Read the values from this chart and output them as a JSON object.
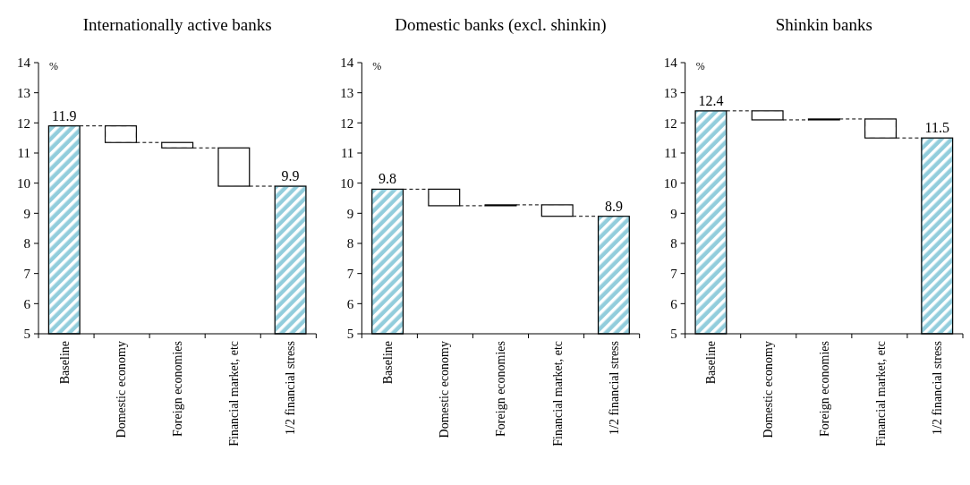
{
  "chart_data": [
    {
      "type": "bar",
      "title": "Internationally active banks",
      "ylabel": "%",
      "categories": [
        "Baseline",
        "Domestic economy",
        "Foreign economies",
        "Financial market, etc",
        "1/2 financial stress"
      ],
      "values": [
        11.9,
        -0.55,
        -0.18,
        -1.27,
        9.9
      ],
      "base": [
        null,
        11.9,
        11.35,
        11.17,
        null
      ],
      "colors": [
        "#92cddc",
        "#ffffff",
        "#ffffff",
        "#ffffff",
        "#92cddc"
      ],
      "value_labels": [
        "11.9",
        null,
        null,
        null,
        "9.9"
      ],
      "ylim": [
        5,
        14
      ],
      "yticks": [
        5,
        6,
        7,
        8,
        9,
        10,
        11,
        12,
        13,
        14
      ],
      "grid": false
    },
    {
      "type": "bar",
      "title": "Domestic banks (excl. shinkin)",
      "ylabel": "%",
      "categories": [
        "Baseline",
        "Domestic economy",
        "Foreign economies",
        "Financial market, etc",
        "1/2 financial stress"
      ],
      "values": [
        9.8,
        -0.55,
        0.03,
        -0.38,
        8.9
      ],
      "base": [
        null,
        9.8,
        9.25,
        9.28,
        null
      ],
      "colors": [
        "#92cddc",
        "#ffffff",
        "#ffffff",
        "#ffffff",
        "#92cddc"
      ],
      "value_labels": [
        "9.8",
        null,
        null,
        null,
        "8.9"
      ],
      "ylim": [
        5,
        14
      ],
      "yticks": [
        5,
        6,
        7,
        8,
        9,
        10,
        11,
        12,
        13,
        14
      ],
      "grid": false
    },
    {
      "type": "bar",
      "title": "Shinkin banks",
      "ylabel": "%",
      "categories": [
        "Baseline",
        "Domestic economy",
        "Foreign economies",
        "Financial market, etc",
        "1/2 financial stress"
      ],
      "values": [
        12.4,
        -0.3,
        0.03,
        -0.63,
        11.5
      ],
      "base": [
        null,
        12.4,
        12.1,
        12.13,
        null
      ],
      "colors": [
        "#92cddc",
        "#ffffff",
        "#ffffff",
        "#ffffff",
        "#92cddc"
      ],
      "value_labels": [
        "12.4",
        null,
        null,
        null,
        "11.5"
      ],
      "ylim": [
        5,
        14
      ],
      "yticks": [
        5,
        6,
        7,
        8,
        9,
        10,
        11,
        12,
        13,
        14
      ],
      "grid": false
    }
  ]
}
